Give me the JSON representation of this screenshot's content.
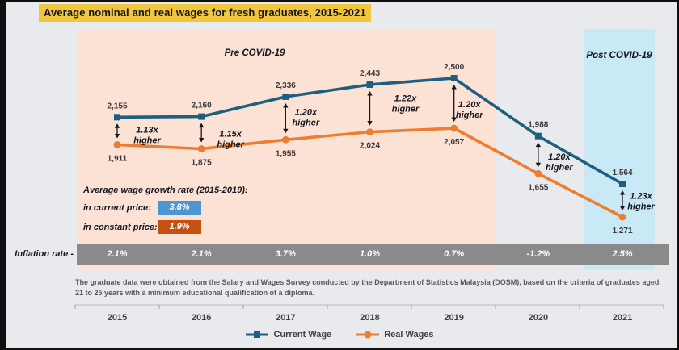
{
  "title": "Average nominal and real wages for fresh graduates, 2015-2021",
  "colors": {
    "title_highlight": "#f0c63e",
    "background": "#e8eaee",
    "pre_covid_band": "#fbe2d5",
    "post_covid_band": "#c8e9f5",
    "inflation_bar": "#8a8a8a",
    "current_wage_line": "#1e5f80",
    "real_wages_line": "#ed7d31",
    "current_price_chip": "#4d96d2",
    "constant_price_chip": "#c5500f"
  },
  "regions": {
    "pre_covid_label": "Pre COVID-19",
    "post_covid_label": "Post COVID-19"
  },
  "growth_box": {
    "title": "Average wage growth rate (2015-2019):",
    "rows": [
      {
        "label": "in current price:",
        "value": "3.8%",
        "color": "#4d96d2"
      },
      {
        "label": "in constant price:",
        "value": "1.9%",
        "color": "#c5500f"
      }
    ]
  },
  "inflation": {
    "label": "Inflation rate -",
    "values": [
      "2.1%",
      "2.1%",
      "3.7%",
      "1.0%",
      "0.7%",
      "-1.2%",
      "2.5%"
    ]
  },
  "footnote": "The graduate data were obtained from the Salary and Wages Survey conducted by the Department of Statistics Malaysia (DOSM), based on the criteria of graduates aged 21 to 25 years with a minimum educational qualification of a diploma.",
  "chart_data": {
    "type": "line",
    "title": "Average nominal and real wages for fresh graduates, 2015-2021",
    "categories": [
      "2015",
      "2016",
      "2017",
      "2018",
      "2019",
      "2020",
      "2021"
    ],
    "series": [
      {
        "name": "Current Wage",
        "color": "#1e5f80",
        "marker": "square",
        "values": [
          2155,
          2160,
          2336,
          2443,
          2500,
          1988,
          1564
        ],
        "labels": [
          "2,155",
          "2,160",
          "2,336",
          "2,443",
          "2,500",
          "1,988",
          "1,564"
        ]
      },
      {
        "name": "Real Wages",
        "color": "#ed7d31",
        "marker": "circle",
        "values": [
          1911,
          1875,
          1955,
          2024,
          2057,
          1655,
          1271
        ],
        "labels": [
          "1,911",
          "1,875",
          "1,955",
          "2,024",
          "2,057",
          "1,655",
          "1,271"
        ]
      }
    ],
    "annotations": [
      "1.13x higher",
      "1.15x higher",
      "1.20x higher",
      "1.22x higher",
      "1.20x higher",
      "1.20x higher",
      "1.23x higher"
    ],
    "inflation_rate": [
      "2.1%",
      "2.1%",
      "3.7%",
      "1.0%",
      "0.7%",
      "-1.2%",
      "2.5%"
    ],
    "legend_position": "bottom",
    "grid": false,
    "ylim": [
      1200,
      2600
    ]
  }
}
